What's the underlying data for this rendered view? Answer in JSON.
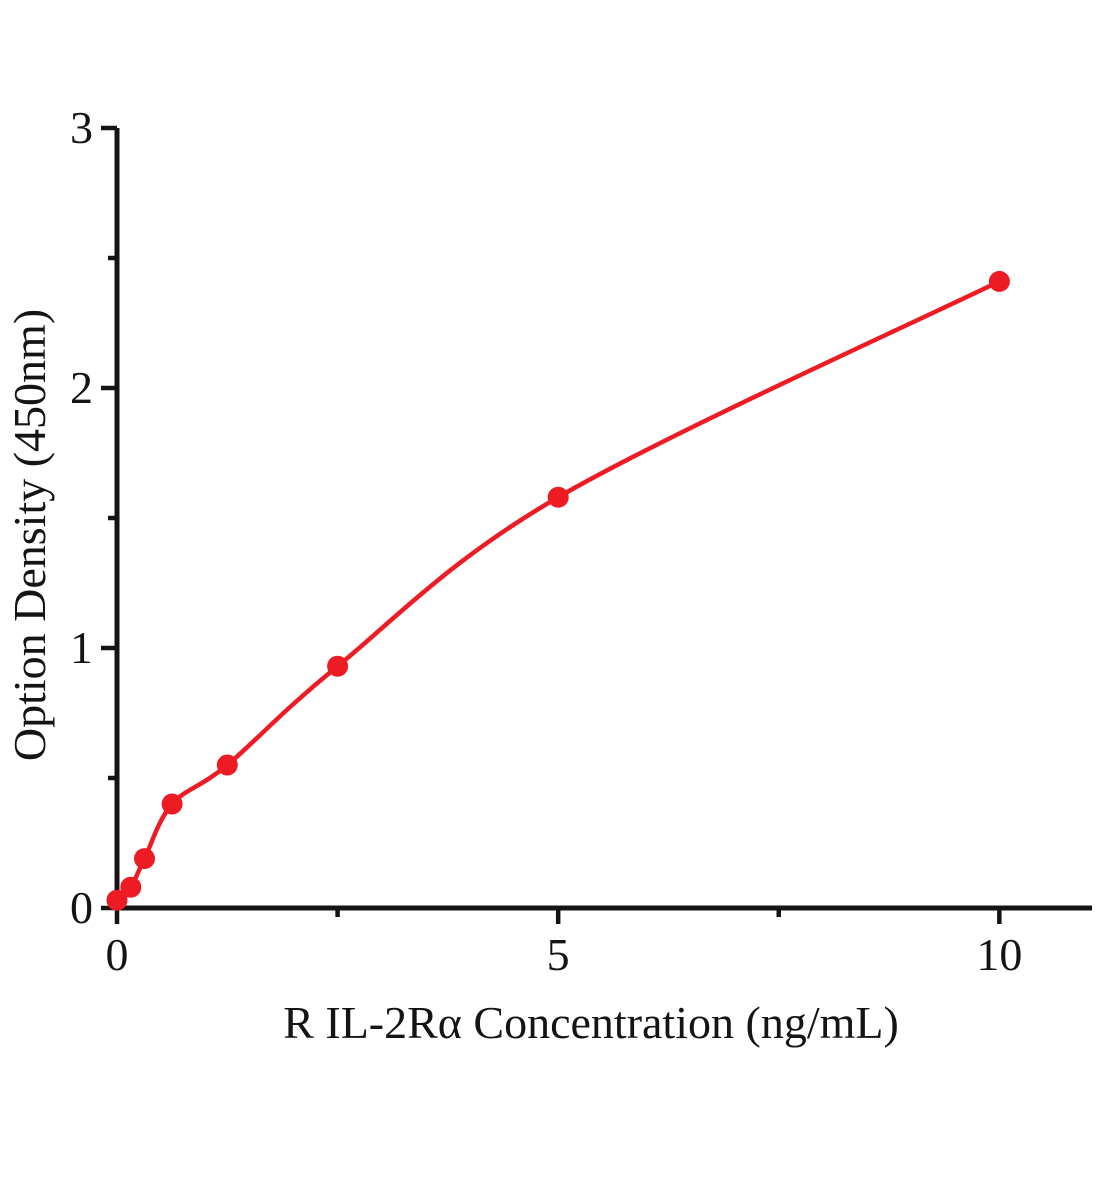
{
  "figure": {
    "background_color": "#ffffff",
    "text_color": "#141414"
  },
  "chart_data": {
    "type": "scatter",
    "subtype": "standard-curve-with-fit-line",
    "title": "",
    "xlabel": "R IL-2Rα Concentration (ng/mL)",
    "ylabel": "Option Density (450nm)",
    "xlim": [
      0,
      11.05
    ],
    "ylim": [
      0,
      3
    ],
    "grid": false,
    "legend": null,
    "frame": "left-bottom-only",
    "axis_color": "#141414",
    "marker_color": "#ed1c24",
    "line_color": "#ed1c24",
    "x_ticks": {
      "major": [
        {
          "value": 0,
          "label": "0"
        },
        {
          "value": 5,
          "label": "5"
        },
        {
          "value": 10,
          "label": "10"
        }
      ],
      "minor_values": [
        2.5,
        7.5
      ]
    },
    "y_ticks": {
      "major": [
        {
          "value": 0,
          "label": "0"
        },
        {
          "value": 1,
          "label": "1"
        },
        {
          "value": 2,
          "label": "2"
        },
        {
          "value": 3,
          "label": "3"
        }
      ],
      "minor_values": [
        0.5,
        1.5,
        2.5
      ]
    },
    "points": [
      {
        "x": 0,
        "y": 0.03
      },
      {
        "x": 0.156,
        "y": 0.08
      },
      {
        "x": 0.312,
        "y": 0.19
      },
      {
        "x": 0.625,
        "y": 0.4
      },
      {
        "x": 1.25,
        "y": 0.55
      },
      {
        "x": 2.5,
        "y": 0.93
      },
      {
        "x": 5,
        "y": 1.58
      },
      {
        "x": 10,
        "y": 2.41
      }
    ]
  }
}
